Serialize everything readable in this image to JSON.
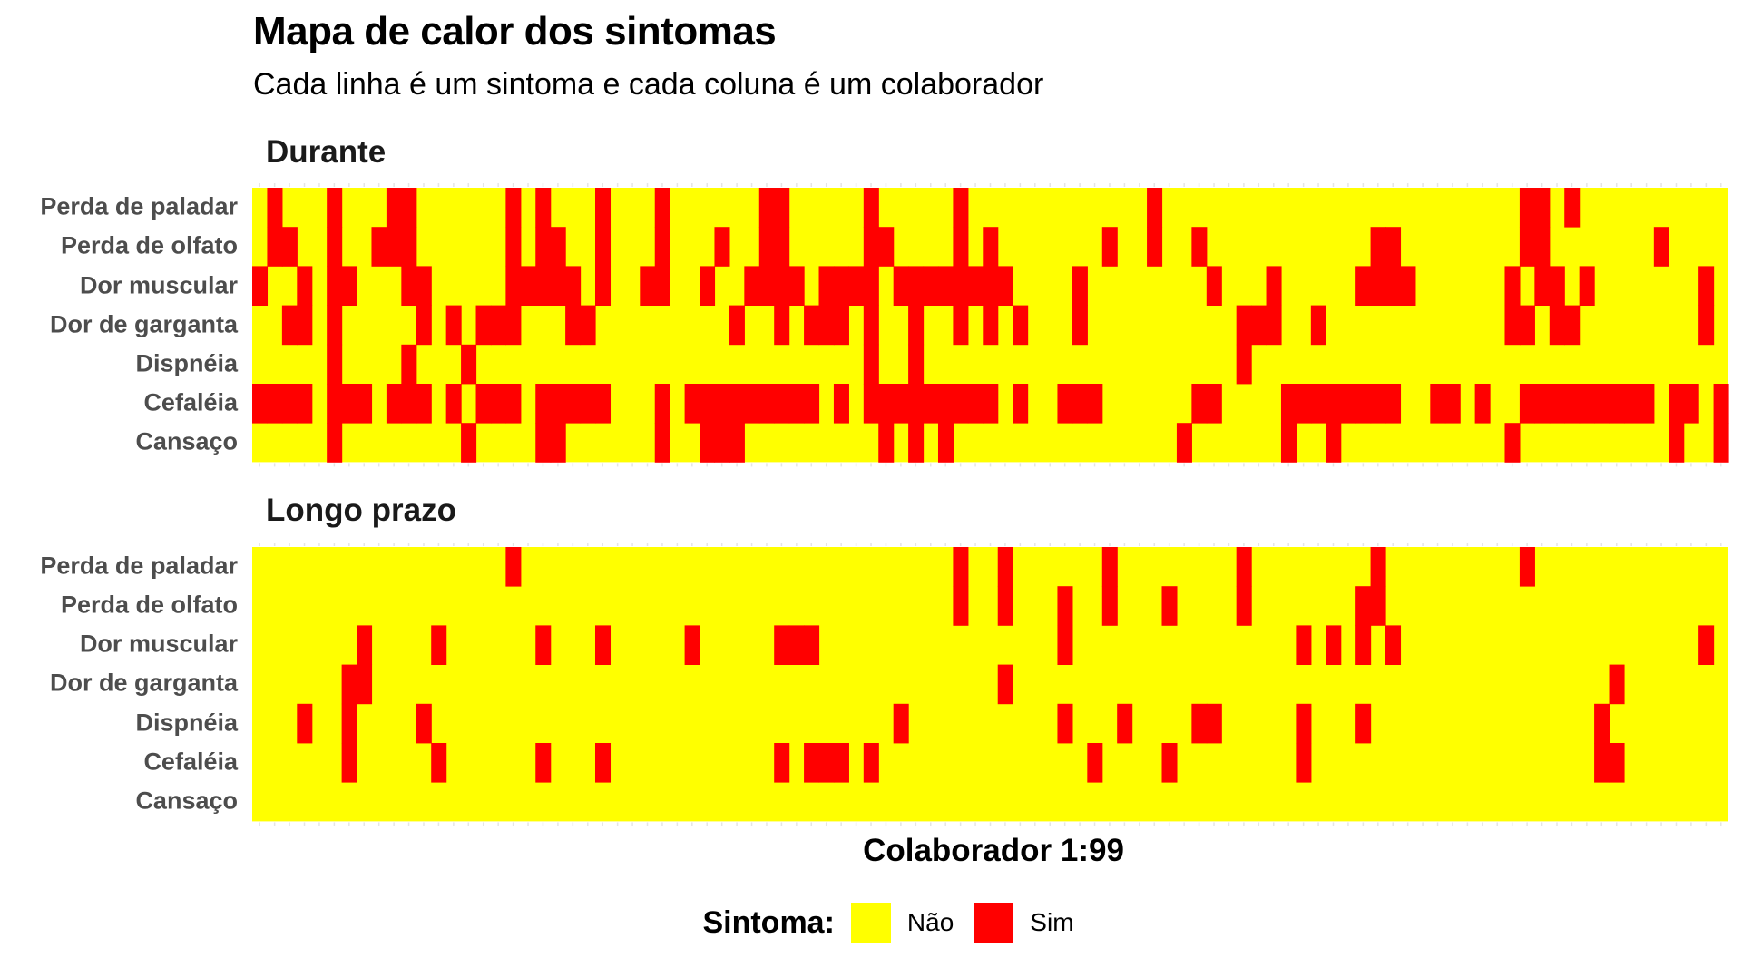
{
  "title": "Mapa de calor dos sintomas",
  "subtitle": "Cada linha é um sintoma e cada coluna é um colaborador",
  "xlabel": "Colaborador 1:99",
  "legend": {
    "title": "Sintoma:",
    "items": [
      {
        "label": "Não",
        "color": "#FFFF00"
      },
      {
        "label": "Sim",
        "color": "#FF0000"
      }
    ]
  },
  "chart_data": {
    "type": "heatmap",
    "n_columns": 99,
    "rows": [
      "Perda de paladar",
      "Perda de olfato",
      "Dor muscular",
      "Dor de garganta",
      "Dispnéia",
      "Cefaléia",
      "Cansaço"
    ],
    "colors": {
      "0": "#FFFF00",
      "1": "#FF0000"
    },
    "panels": [
      {
        "label": "Durante",
        "present": {
          "Perda de paladar": [
            2,
            6,
            10,
            11,
            18,
            20,
            24,
            28,
            35,
            36,
            42,
            48,
            61,
            86,
            87,
            89
          ],
          "Perda de olfato": [
            2,
            3,
            6,
            9,
            10,
            11,
            18,
            20,
            21,
            24,
            28,
            32,
            35,
            36,
            42,
            43,
            48,
            50,
            58,
            61,
            64,
            76,
            77,
            86,
            87,
            95
          ],
          "Dor muscular": [
            1,
            4,
            6,
            7,
            11,
            12,
            18,
            19,
            20,
            21,
            22,
            24,
            27,
            28,
            31,
            34,
            35,
            36,
            37,
            39,
            40,
            41,
            42,
            44,
            45,
            46,
            47,
            48,
            49,
            50,
            51,
            56,
            65,
            69,
            75,
            76,
            77,
            78,
            85,
            87,
            88,
            90,
            98
          ],
          "Dor de garganta": [
            3,
            4,
            6,
            12,
            14,
            16,
            17,
            18,
            22,
            23,
            33,
            36,
            38,
            39,
            40,
            42,
            45,
            48,
            50,
            52,
            56,
            67,
            68,
            69,
            72,
            85,
            86,
            88,
            89,
            98
          ],
          "Dispnéia": [
            6,
            11,
            15,
            42,
            45,
            67
          ],
          "Cefaléia": [
            1,
            2,
            3,
            4,
            6,
            7,
            8,
            10,
            11,
            12,
            14,
            16,
            17,
            18,
            20,
            21,
            22,
            23,
            24,
            28,
            30,
            31,
            32,
            33,
            34,
            35,
            36,
            37,
            38,
            40,
            42,
            43,
            44,
            45,
            46,
            47,
            48,
            49,
            50,
            52,
            55,
            56,
            57,
            64,
            65,
            70,
            71,
            72,
            73,
            74,
            75,
            76,
            77,
            80,
            81,
            83,
            86,
            87,
            88,
            89,
            90,
            91,
            92,
            93,
            94,
            96,
            97,
            99
          ],
          "Cansaço": [
            6,
            15,
            20,
            21,
            28,
            31,
            32,
            33,
            43,
            45,
            47,
            63,
            70,
            73,
            85,
            96,
            99
          ]
        }
      },
      {
        "label": "Longo prazo",
        "present": {
          "Perda de paladar": [
            18,
            48,
            51,
            58,
            67,
            76,
            86
          ],
          "Perda de olfato": [
            48,
            51,
            55,
            58,
            62,
            67,
            75,
            76
          ],
          "Dor muscular": [
            8,
            13,
            20,
            24,
            30,
            36,
            37,
            38,
            55,
            71,
            73,
            75,
            77,
            98
          ],
          "Dor de garganta": [
            7,
            8,
            51,
            92
          ],
          "Dispnéia": [
            4,
            7,
            12,
            44,
            55,
            59,
            64,
            65,
            71,
            75,
            91
          ],
          "Cefaléia": [
            7,
            13,
            20,
            24,
            36,
            38,
            39,
            40,
            42,
            57,
            62,
            71,
            91,
            92
          ],
          "Cansaço": []
        }
      }
    ]
  }
}
